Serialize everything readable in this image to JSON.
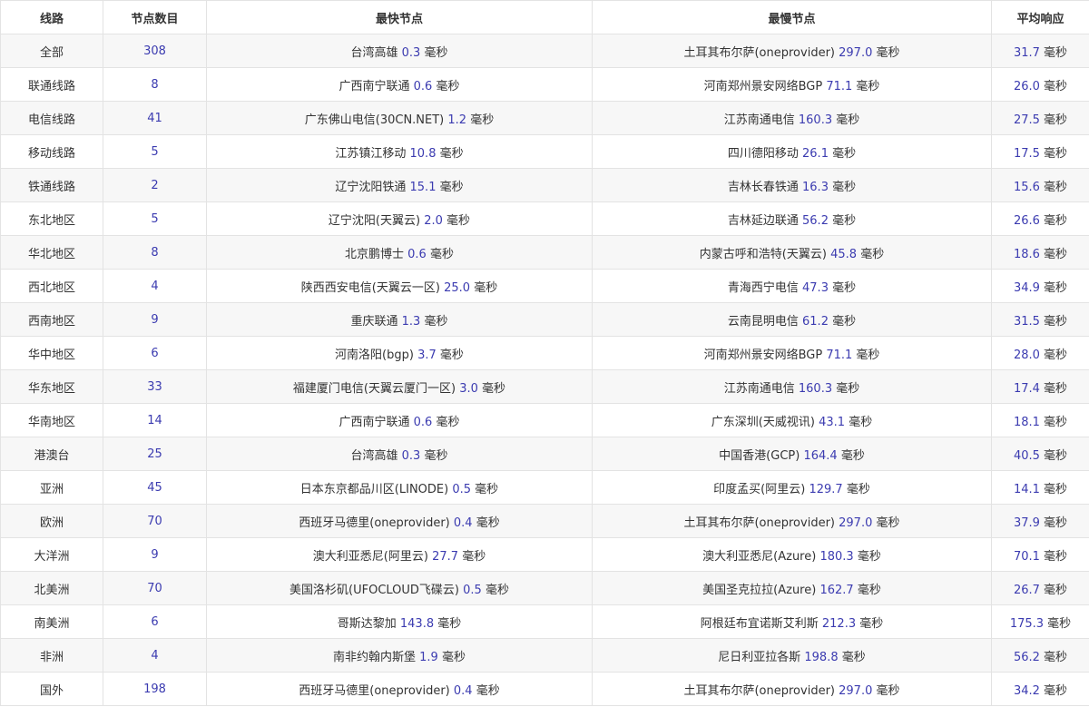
{
  "unit": "毫秒",
  "headers": [
    "线路",
    "节点数目",
    "最快节点",
    "最慢节点",
    "平均响应"
  ],
  "rows": [
    {
      "line": "全部",
      "count": "308",
      "fast_name": "台湾高雄",
      "fast_ms": "0.3",
      "slow_name": "土耳其布尔萨(oneprovider)",
      "slow_ms": "297.0",
      "avg_ms": "31.7"
    },
    {
      "line": "联通线路",
      "count": "8",
      "fast_name": "广西南宁联通",
      "fast_ms": "0.6",
      "slow_name": "河南郑州景安网络BGP",
      "slow_ms": "71.1",
      "avg_ms": "26.0"
    },
    {
      "line": "电信线路",
      "count": "41",
      "fast_name": "广东佛山电信(30CN.NET)",
      "fast_ms": "1.2",
      "slow_name": "江苏南通电信",
      "slow_ms": "160.3",
      "avg_ms": "27.5"
    },
    {
      "line": "移动线路",
      "count": "5",
      "fast_name": "江苏镇江移动",
      "fast_ms": "10.8",
      "slow_name": "四川德阳移动",
      "slow_ms": "26.1",
      "avg_ms": "17.5"
    },
    {
      "line": "铁通线路",
      "count": "2",
      "fast_name": "辽宁沈阳铁通",
      "fast_ms": "15.1",
      "slow_name": "吉林长春铁通",
      "slow_ms": "16.3",
      "avg_ms": "15.6"
    },
    {
      "line": "东北地区",
      "count": "5",
      "fast_name": "辽宁沈阳(天翼云)",
      "fast_ms": "2.0",
      "slow_name": "吉林延边联通",
      "slow_ms": "56.2",
      "avg_ms": "26.6"
    },
    {
      "line": "华北地区",
      "count": "8",
      "fast_name": "北京鹏博士",
      "fast_ms": "0.6",
      "slow_name": "内蒙古呼和浩特(天翼云)",
      "slow_ms": "45.8",
      "avg_ms": "18.6"
    },
    {
      "line": "西北地区",
      "count": "4",
      "fast_name": "陕西西安电信(天翼云一区)",
      "fast_ms": "25.0",
      "slow_name": "青海西宁电信",
      "slow_ms": "47.3",
      "avg_ms": "34.9"
    },
    {
      "line": "西南地区",
      "count": "9",
      "fast_name": "重庆联通",
      "fast_ms": "1.3",
      "slow_name": "云南昆明电信",
      "slow_ms": "61.2",
      "avg_ms": "31.5"
    },
    {
      "line": "华中地区",
      "count": "6",
      "fast_name": "河南洛阳(bgp)",
      "fast_ms": "3.7",
      "slow_name": "河南郑州景安网络BGP",
      "slow_ms": "71.1",
      "avg_ms": "28.0"
    },
    {
      "line": "华东地区",
      "count": "33",
      "fast_name": "福建厦门电信(天翼云厦门一区)",
      "fast_ms": "3.0",
      "slow_name": "江苏南通电信",
      "slow_ms": "160.3",
      "avg_ms": "17.4"
    },
    {
      "line": "华南地区",
      "count": "14",
      "fast_name": "广西南宁联通",
      "fast_ms": "0.6",
      "slow_name": "广东深圳(天威视讯)",
      "slow_ms": "43.1",
      "avg_ms": "18.1"
    },
    {
      "line": "港澳台",
      "count": "25",
      "fast_name": "台湾高雄",
      "fast_ms": "0.3",
      "slow_name": "中国香港(GCP)",
      "slow_ms": "164.4",
      "avg_ms": "40.5"
    },
    {
      "line": "亚洲",
      "count": "45",
      "fast_name": "日本东京都品川区(LINODE)",
      "fast_ms": "0.5",
      "slow_name": "印度孟买(阿里云)",
      "slow_ms": "129.7",
      "avg_ms": "14.1"
    },
    {
      "line": "欧洲",
      "count": "70",
      "fast_name": "西班牙马德里(oneprovider)",
      "fast_ms": "0.4",
      "slow_name": "土耳其布尔萨(oneprovider)",
      "slow_ms": "297.0",
      "avg_ms": "37.9"
    },
    {
      "line": "大洋洲",
      "count": "9",
      "fast_name": "澳大利亚悉尼(阿里云)",
      "fast_ms": "27.7",
      "slow_name": "澳大利亚悉尼(Azure)",
      "slow_ms": "180.3",
      "avg_ms": "70.1"
    },
    {
      "line": "北美洲",
      "count": "70",
      "fast_name": "美国洛杉矶(UFOCLOUD飞碟云)",
      "fast_ms": "0.5",
      "slow_name": "美国圣克拉拉(Azure)",
      "slow_ms": "162.7",
      "avg_ms": "26.7"
    },
    {
      "line": "南美洲",
      "count": "6",
      "fast_name": "哥斯达黎加",
      "fast_ms": "143.8",
      "slow_name": "阿根廷布宜诺斯艾利斯",
      "slow_ms": "212.3",
      "avg_ms": "175.3"
    },
    {
      "line": "非洲",
      "count": "4",
      "fast_name": "南非约翰内斯堡",
      "fast_ms": "1.9",
      "slow_name": "尼日利亚拉各斯",
      "slow_ms": "198.8",
      "avg_ms": "56.2"
    },
    {
      "line": "国外",
      "count": "198",
      "fast_name": "西班牙马德里(oneprovider)",
      "fast_ms": "0.4",
      "slow_name": "土耳其布尔萨(oneprovider)",
      "slow_ms": "297.0",
      "avg_ms": "34.2"
    }
  ]
}
